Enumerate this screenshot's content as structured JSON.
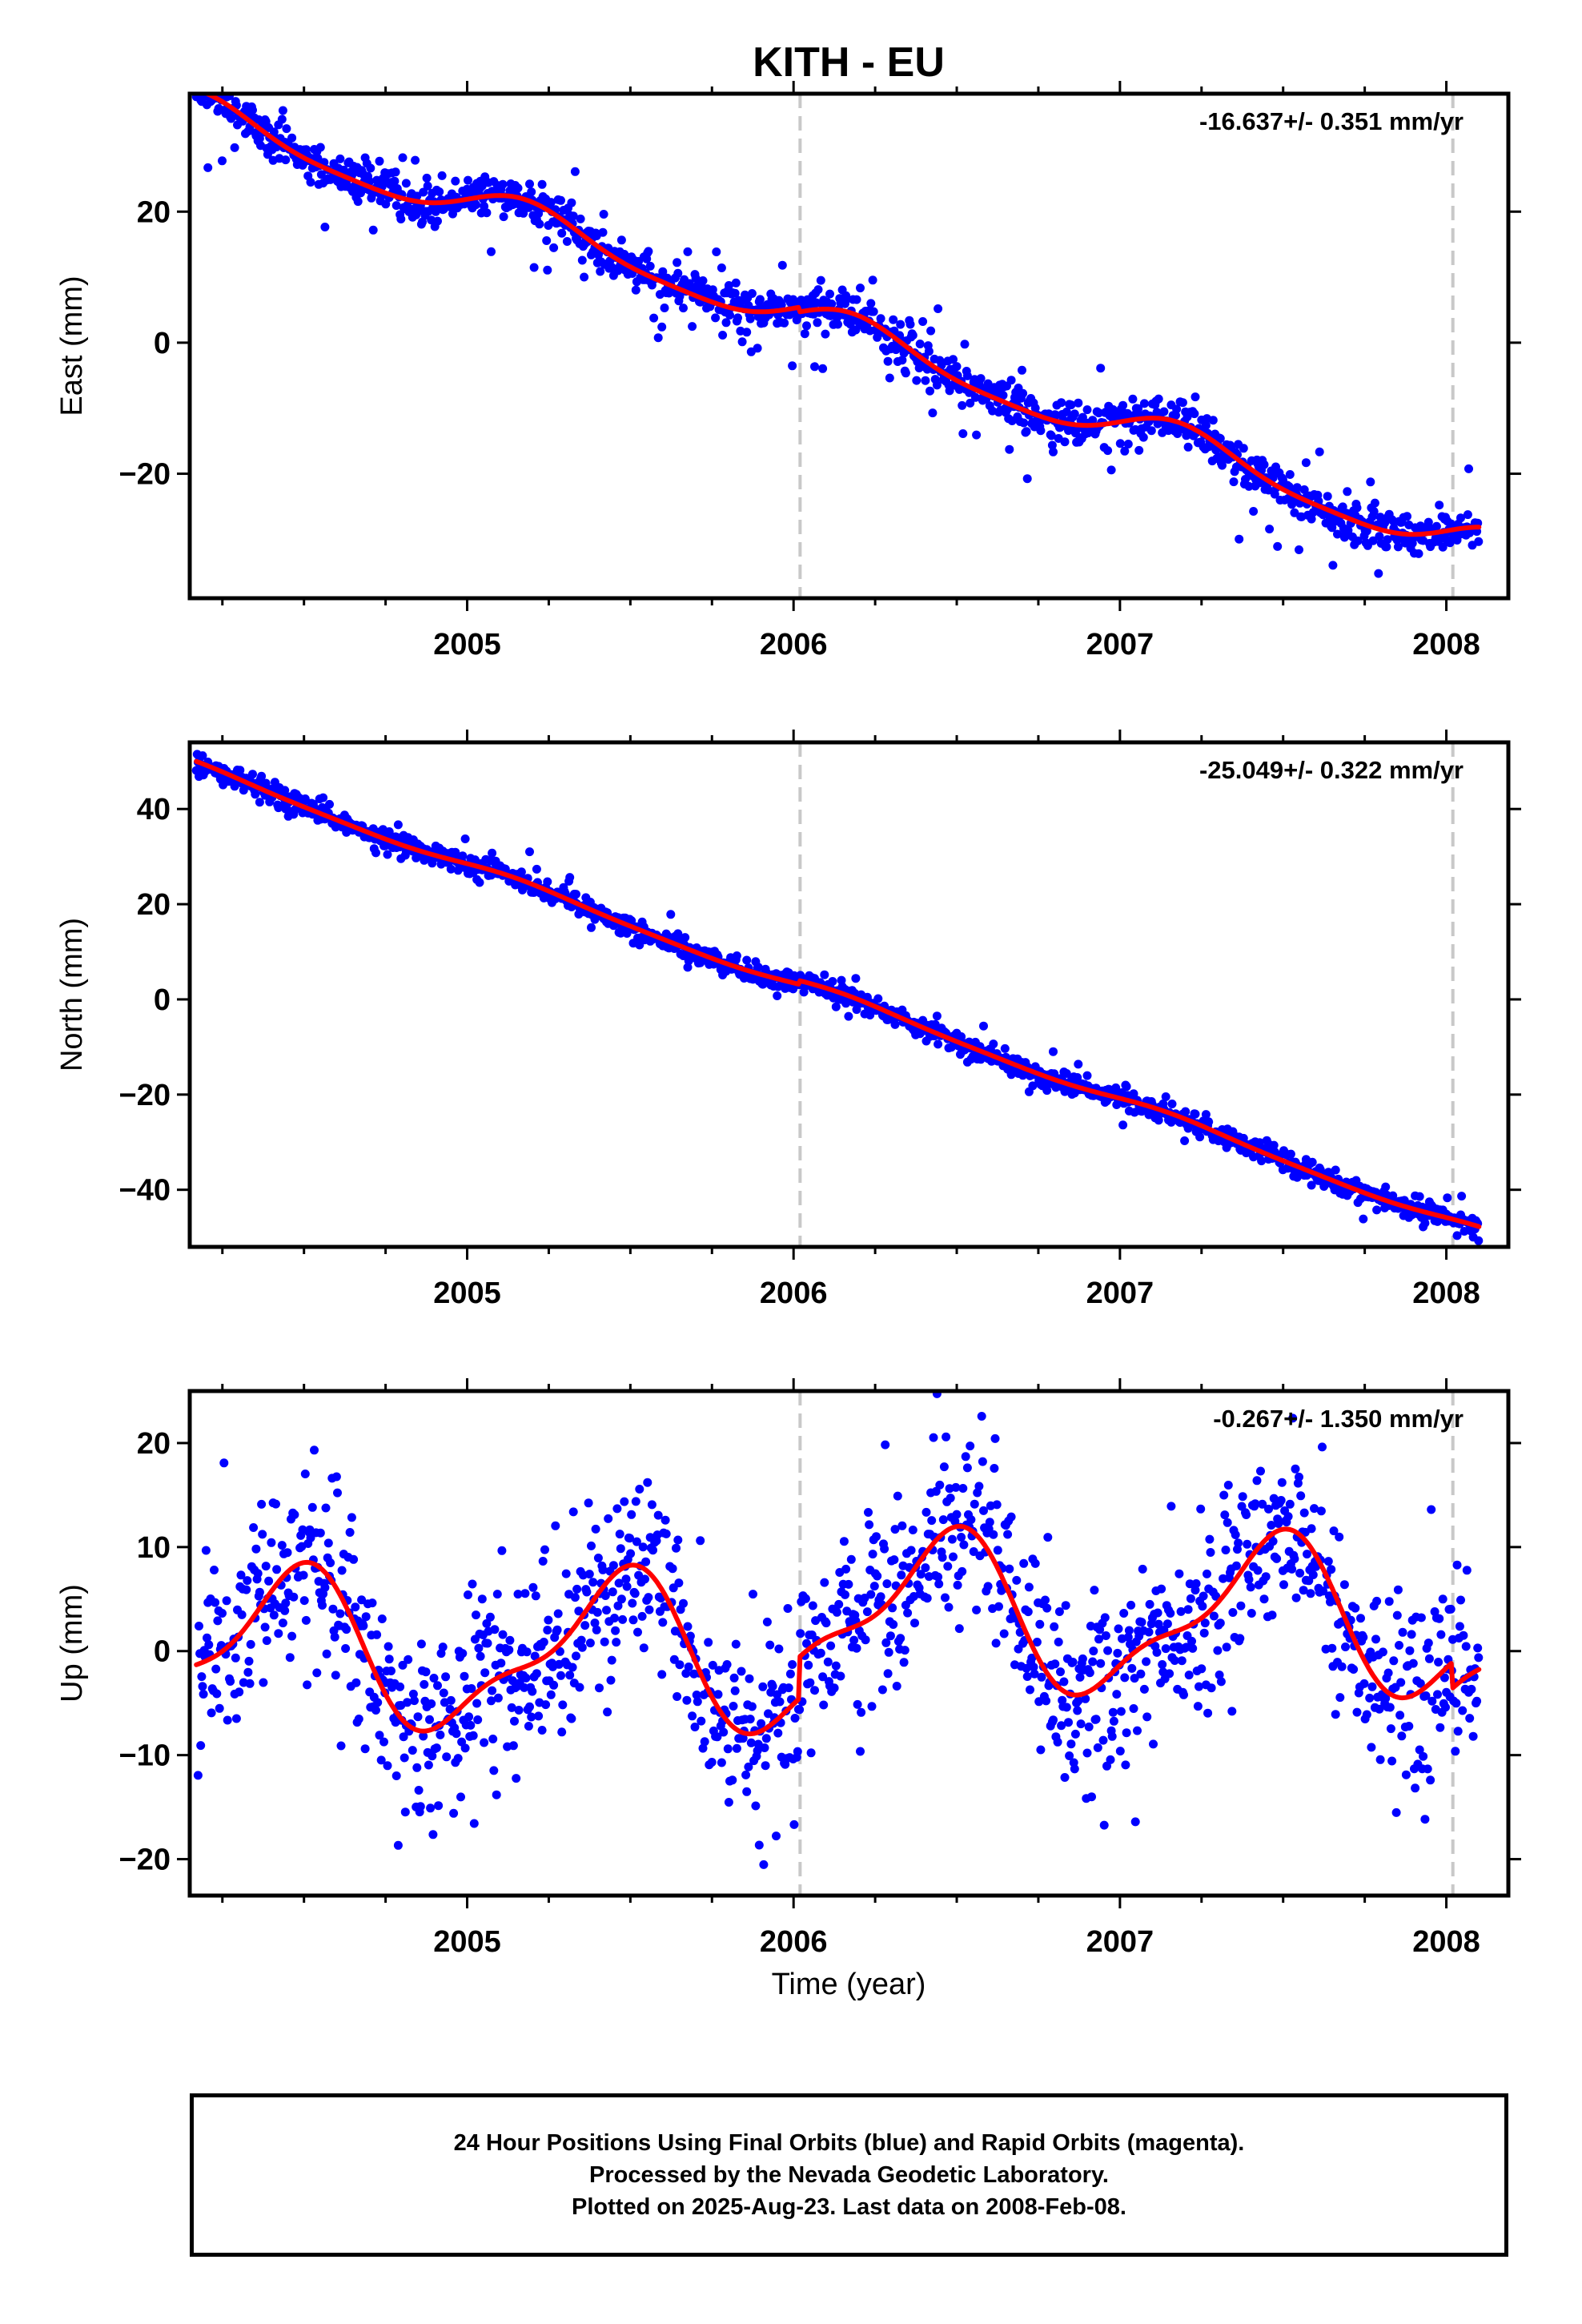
{
  "figure": {
    "title": "KITH - EU",
    "xlabel": "Time (year)"
  },
  "footer": {
    "lines": [
      "24 Hour Positions Using Final Orbits (blue) and Rapid Orbits (magenta).",
      "Processed by the Nevada Geodetic Laboratory.",
      "Plotted on 2025-Aug-23. Last data on 2008-Feb-08."
    ]
  },
  "colors": {
    "points": "#0000ff",
    "model": "#ff0000",
    "steps": "#c8c8c8",
    "frame": "#000000"
  },
  "chart_data": [
    {
      "type": "scatter",
      "name": "east",
      "ylabel": "East (mm)",
      "rate_label": "-16.637+/- 0.351 mm/yr",
      "xlim": [
        2004.15,
        2008.19
      ],
      "ylim": [
        -39,
        38
      ],
      "xticks": [
        2005,
        2006,
        2007,
        2008
      ],
      "yticks": [
        -20,
        0,
        20
      ],
      "grid": false,
      "step_epochs": [
        2006.02,
        2008.02
      ],
      "data_span": [
        2004.17,
        2008.1
      ],
      "model_trend": {
        "t0": 2004.17,
        "offset": 35.0,
        "rate": -16.637
      },
      "model_seasonal": {
        "a_sin": 2.8,
        "a_cos": 1.0,
        "b_sin": 0.6,
        "b_cos": -0.3
      },
      "model_offsets": [
        {
          "epoch": 2006.02,
          "size": -0.7
        },
        {
          "epoch": 2008.02,
          "size": 0.0
        }
      ],
      "scatter_std": 1.6,
      "outlier_rate": 0.04,
      "outlier_amp": 6.0,
      "model_curve": {
        "x": [
          2004.17,
          2004.5,
          2005.0,
          2005.5,
          2006.0,
          2006.02,
          2006.5,
          2007.0,
          2007.5,
          2008.0,
          2008.1
        ],
        "y": [
          34.5,
          31.0,
          19.0,
          15.5,
          1.0,
          0.3,
          -3.5,
          -16.5,
          -18.5,
          -33.0,
          -33.0
        ]
      }
    },
    {
      "type": "scatter",
      "name": "north",
      "ylabel": "North (mm)",
      "rate_label": "-25.049+/- 0.322 mm/yr",
      "xlim": [
        2004.15,
        2008.19
      ],
      "ylim": [
        -52,
        54
      ],
      "xticks": [
        2005,
        2006,
        2007,
        2008
      ],
      "yticks": [
        -40,
        -20,
        0,
        20,
        40
      ],
      "grid": false,
      "step_epochs": [
        2006.02,
        2008.02
      ],
      "data_span": [
        2004.17,
        2008.1
      ],
      "model_trend": {
        "t0": 2004.17,
        "offset": 49.0,
        "rate": -25.049
      },
      "model_seasonal": {
        "a_sin": 0.8,
        "a_cos": 0.3,
        "b_sin": 0.2,
        "b_cos": 0.0
      },
      "model_offsets": [
        {
          "epoch": 2006.02,
          "size": 0.8
        },
        {
          "epoch": 2008.02,
          "size": 0.0
        }
      ],
      "scatter_std": 1.1,
      "outlier_rate": 0.02,
      "outlier_amp": 3.5,
      "model_curve": {
        "x": [
          2004.17,
          2005.0,
          2006.0,
          2006.02,
          2007.0,
          2008.0,
          2008.1
        ],
        "y": [
          49.0,
          31.0,
          5.5,
          5.0,
          -20.0,
          -46.0,
          -48.5
        ]
      }
    },
    {
      "type": "scatter",
      "name": "up",
      "ylabel": "Up (mm)",
      "rate_label": "-0.267+/- 1.350 mm/yr",
      "xlim": [
        2004.15,
        2008.19
      ],
      "ylim": [
        -23.5,
        25
      ],
      "xticks": [
        2005,
        2006,
        2007,
        2008
      ],
      "yticks": [
        -20,
        -10,
        0,
        10,
        20
      ],
      "grid": false,
      "step_epochs": [
        2006.02,
        2008.02
      ],
      "data_span": [
        2004.17,
        2008.1
      ],
      "model_trend": {
        "t0": 2004.17,
        "offset": 0.0,
        "rate": -0.267
      },
      "model_seasonal": {
        "a_sin": 2.0,
        "a_cos": -6.6,
        "b_sin": 1.4,
        "b_cos": 2.0
      },
      "model_offsets": [
        {
          "epoch": 2006.02,
          "size": 4.0
        },
        {
          "epoch": 2008.02,
          "size": -2.5
        }
      ],
      "scatter_std": 4.2,
      "outlier_rate": 0.03,
      "outlier_amp": 8.0,
      "model_curve": {
        "x": [
          2004.17,
          2004.58,
          2005.05,
          2005.25,
          2005.58,
          2006.0,
          2006.02,
          2006.25,
          2006.58,
          2007.05,
          2007.25,
          2007.58,
          2008.0,
          2008.02,
          2008.1
        ],
        "y": [
          -7.0,
          8.5,
          -5.0,
          -7.0,
          8.0,
          -5.5,
          -0.5,
          -3.5,
          12.0,
          -1.5,
          -3.5,
          11.5,
          -2.0,
          -4.5,
          -4.5
        ]
      }
    }
  ]
}
